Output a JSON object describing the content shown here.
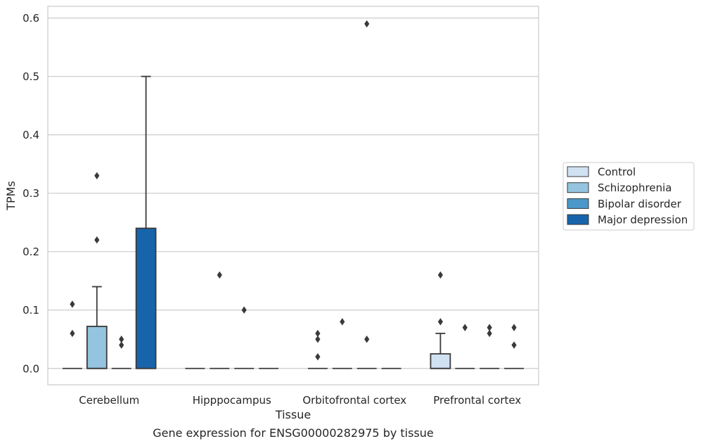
{
  "caption": "Gene expression for ENSG00000282975 by tissue",
  "chart_data": {
    "type": "box",
    "xlabel": "Tissue",
    "ylabel": "TPMs",
    "ylim": [
      -0.028,
      0.62
    ],
    "yticks": [
      0.0,
      0.1,
      0.2,
      0.3,
      0.4,
      0.5,
      0.6
    ],
    "grid": true,
    "legend_placement": "right",
    "categories": [
      "Cerebellum",
      "Hipppocampus",
      "Orbitofrontal cortex",
      "Prefrontal cortex"
    ],
    "series": [
      {
        "name": "Control",
        "color": "#d0e1f2"
      },
      {
        "name": "Schizophrenia",
        "color": "#94c4df"
      },
      {
        "name": "Bipolar disorder",
        "color": "#4a98c9"
      },
      {
        "name": "Major depression",
        "color": "#1764ab"
      }
    ],
    "boxes": [
      {
        "category": 0,
        "series": 0,
        "q1": 0,
        "median": 0,
        "q3": 0,
        "whislo": 0,
        "whishi": 0,
        "fliers": [
          0.06,
          0.11
        ]
      },
      {
        "category": 0,
        "series": 1,
        "q1": 0,
        "median": 0,
        "q3": 0.072,
        "whislo": 0,
        "whishi": 0.14,
        "fliers": [
          0.22,
          0.33
        ]
      },
      {
        "category": 0,
        "series": 2,
        "q1": 0,
        "median": 0,
        "q3": 0,
        "whislo": 0,
        "whishi": 0,
        "fliers": [
          0.04,
          0.05
        ]
      },
      {
        "category": 0,
        "series": 3,
        "q1": 0,
        "median": 0,
        "q3": 0.24,
        "whislo": 0,
        "whishi": 0.5,
        "fliers": []
      },
      {
        "category": 1,
        "series": 0,
        "q1": 0,
        "median": 0,
        "q3": 0,
        "whislo": 0,
        "whishi": 0,
        "fliers": []
      },
      {
        "category": 1,
        "series": 1,
        "q1": 0,
        "median": 0,
        "q3": 0,
        "whislo": 0,
        "whishi": 0,
        "fliers": [
          0.16
        ]
      },
      {
        "category": 1,
        "series": 2,
        "q1": 0,
        "median": 0,
        "q3": 0,
        "whislo": 0,
        "whishi": 0,
        "fliers": [
          0.1
        ]
      },
      {
        "category": 1,
        "series": 3,
        "q1": 0,
        "median": 0,
        "q3": 0,
        "whislo": 0,
        "whishi": 0,
        "fliers": []
      },
      {
        "category": 2,
        "series": 0,
        "q1": 0,
        "median": 0,
        "q3": 0,
        "whislo": 0,
        "whishi": 0,
        "fliers": [
          0.02,
          0.05,
          0.06
        ]
      },
      {
        "category": 2,
        "series": 1,
        "q1": 0,
        "median": 0,
        "q3": 0,
        "whislo": 0,
        "whishi": 0,
        "fliers": [
          0.08
        ]
      },
      {
        "category": 2,
        "series": 2,
        "q1": 0,
        "median": 0,
        "q3": 0,
        "whislo": 0,
        "whishi": 0,
        "fliers": [
          0.05,
          0.59
        ]
      },
      {
        "category": 2,
        "series": 3,
        "q1": 0,
        "median": 0,
        "q3": 0,
        "whislo": 0,
        "whishi": 0,
        "fliers": []
      },
      {
        "category": 3,
        "series": 0,
        "q1": 0,
        "median": 0,
        "q3": 0.025,
        "whislo": 0,
        "whishi": 0.06,
        "fliers": [
          0.08,
          0.16
        ]
      },
      {
        "category": 3,
        "series": 1,
        "q1": 0,
        "median": 0,
        "q3": 0,
        "whislo": 0,
        "whishi": 0,
        "fliers": [
          0.07
        ]
      },
      {
        "category": 3,
        "series": 2,
        "q1": 0,
        "median": 0,
        "q3": 0,
        "whislo": 0,
        "whishi": 0,
        "fliers": [
          0.06,
          0.07
        ]
      },
      {
        "category": 3,
        "series": 3,
        "q1": 0,
        "median": 0,
        "q3": 0,
        "whislo": 0,
        "whishi": 0,
        "fliers": [
          0.04,
          0.07
        ]
      }
    ]
  }
}
